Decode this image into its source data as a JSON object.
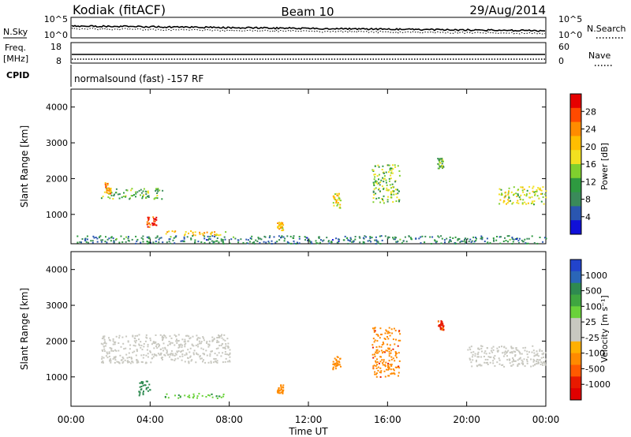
{
  "header": {
    "station": "Kodiak (fitACF)",
    "beam": "Beam 10",
    "date": "29/Aug/2014"
  },
  "top_panels": {
    "nsky_label": "N.Sky",
    "nsky_ticks": [
      "10^5",
      "10^0"
    ],
    "nsearch_label": "N.Search",
    "nsearch_ticks": [
      "10^5",
      "10^0"
    ],
    "freq_label_1": "Freq.",
    "freq_label_2": "[MHz]",
    "freq_ticks": [
      "18",
      "8"
    ],
    "nave_label": "Nave",
    "nave_ticks": [
      "60",
      "0"
    ],
    "cpid_label": "CPID",
    "cpid_text": "normalsound (fast) -157 RF"
  },
  "colorbars": {
    "power": {
      "label": "Power [dB]",
      "ticks": [
        "28",
        "24",
        "20",
        "16",
        "12",
        "8",
        "4"
      ],
      "colors": [
        "#e60000",
        "#ff4a00",
        "#ff8c00",
        "#ffbe00",
        "#f2e020",
        "#7fd02e",
        "#2e9a40",
        "#3a8a5a",
        "#2a56b0",
        "#1010d8"
      ]
    },
    "velocity": {
      "label": "Velocity [m s⁻¹]",
      "ticks": [
        "1000",
        "500",
        "100",
        "25",
        "-25",
        "-100",
        "-500",
        "-1000"
      ],
      "colors": [
        "#2244cc",
        "#2a66b8",
        "#2e8a50",
        "#3fa640",
        "#6ad23a",
        "#c8c8c0",
        "#c8c8c0",
        "#ffb000",
        "#ff8a00",
        "#ff5a00",
        "#e81a00",
        "#e00000"
      ]
    }
  },
  "axes": {
    "ylabel": "Slant Range [km]",
    "y_ticks": [
      "1000",
      "2000",
      "3000",
      "4000"
    ],
    "x_ticks": [
      "00:00",
      "04:00",
      "08:00",
      "12:00",
      "16:00",
      "20:00",
      "00:00"
    ],
    "xlabel": "Time UT"
  },
  "chart_data": [
    {
      "type": "heatmap",
      "title": "Power [dB]",
      "ylabel": "Slant Range [km]",
      "ylim": [
        180,
        4500
      ],
      "xlim_hours": [
        0,
        24
      ],
      "color_scale": [
        0,
        32
      ],
      "regions": [
        {
          "t0": 1.5,
          "t1": 4.6,
          "r0": 1450,
          "r1": 1750,
          "value": 12
        },
        {
          "t0": 1.7,
          "t1": 2.0,
          "r0": 1600,
          "r1": 1900,
          "value": 22
        },
        {
          "t0": 3.8,
          "t1": 4.3,
          "r0": 650,
          "r1": 950,
          "value": 28
        },
        {
          "t0": 4.7,
          "t1": 7.8,
          "r0": 420,
          "r1": 560,
          "value": 20
        },
        {
          "t0": 10.4,
          "t1": 10.7,
          "r0": 550,
          "r1": 800,
          "value": 20
        },
        {
          "t0": 13.2,
          "t1": 13.6,
          "r0": 1200,
          "r1": 1600,
          "value": 18
        },
        {
          "t0": 15.2,
          "t1": 16.6,
          "r0": 1300,
          "r1": 2400,
          "value": 14
        },
        {
          "t0": 21.6,
          "t1": 24.0,
          "r0": 1300,
          "r1": 1800,
          "value": 16
        },
        {
          "t0": 18.5,
          "t1": 18.8,
          "r0": 2300,
          "r1": 2600,
          "value": 12
        },
        {
          "t0": 0.2,
          "t1": 24.0,
          "r0": 200,
          "r1": 420,
          "value": 8
        }
      ]
    },
    {
      "type": "heatmap",
      "title": "Velocity [m s⁻¹]",
      "ylabel": "Slant Range [km]",
      "ylim": [
        180,
        4500
      ],
      "xlim_hours": [
        0,
        24
      ],
      "regions": [
        {
          "t0": 1.5,
          "t1": 8.0,
          "r0": 1400,
          "r1": 2200,
          "value": 0
        },
        {
          "t0": 3.4,
          "t1": 4.0,
          "r0": 500,
          "r1": 900,
          "value": 300
        },
        {
          "t0": 4.7,
          "t1": 7.8,
          "r0": 420,
          "r1": 560,
          "value": 80
        },
        {
          "t0": 10.4,
          "t1": 10.7,
          "r0": 550,
          "r1": 800,
          "value": -200
        },
        {
          "t0": 13.2,
          "t1": 13.6,
          "r0": 1200,
          "r1": 1600,
          "value": -300
        },
        {
          "t0": 15.2,
          "t1": 16.6,
          "r0": 1000,
          "r1": 2400,
          "value": -400
        },
        {
          "t0": 18.5,
          "t1": 18.8,
          "r0": 2300,
          "r1": 2600,
          "value": -600
        },
        {
          "t0": 20.0,
          "t1": 24.0,
          "r0": 1300,
          "r1": 1900,
          "value": 0
        }
      ]
    }
  ]
}
